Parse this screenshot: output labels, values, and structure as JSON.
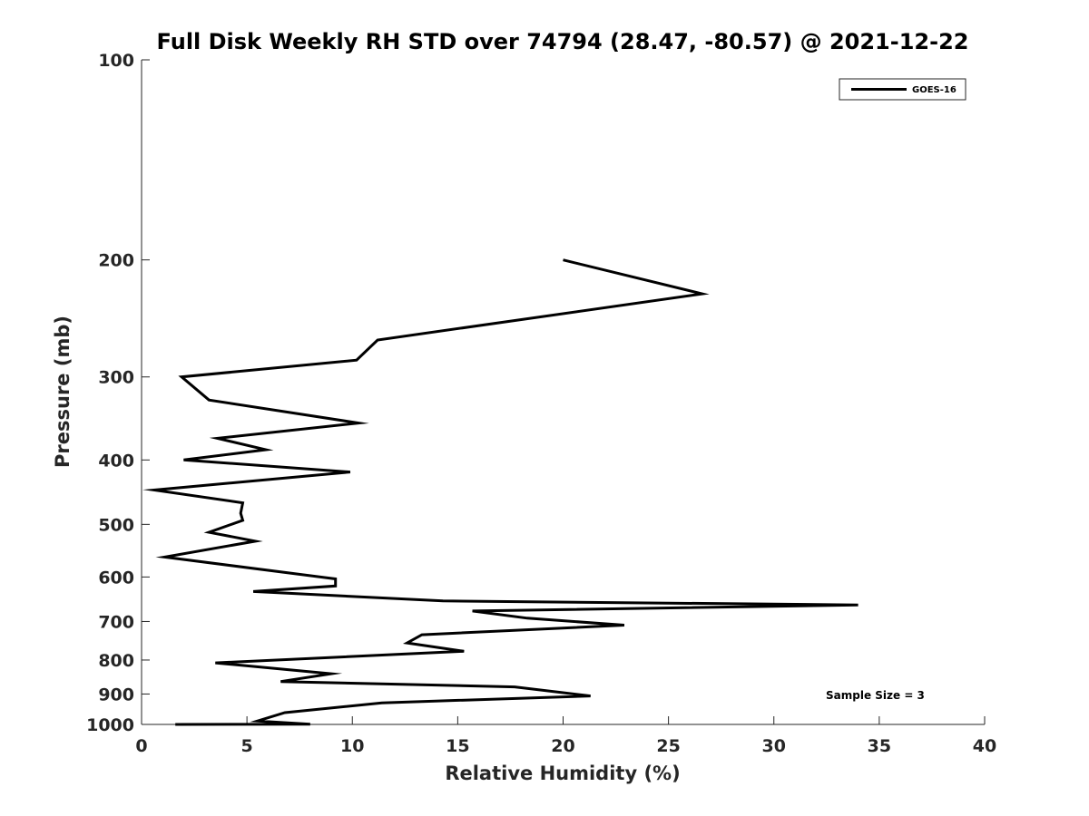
{
  "chart_data": {
    "type": "line",
    "title": "Full Disk Weekly RH STD over 74794 (28.47, -80.57) @ 2021-12-22",
    "xlabel": "Relative Humidity (%)",
    "ylabel": "Pressure (mb)",
    "xlim": [
      0,
      40
    ],
    "ylim": [
      100,
      1000
    ],
    "y_scale": "log",
    "y_reversed": true,
    "x_ticks": [
      0,
      5,
      10,
      15,
      20,
      25,
      30,
      35,
      40
    ],
    "y_ticks": [
      100,
      200,
      300,
      400,
      500,
      600,
      700,
      800,
      900,
      1000
    ],
    "grid": false,
    "legend_position": "top-right",
    "annotation": "Sample Size = 3",
    "series": [
      {
        "name": "GOES-16",
        "color": "#000000",
        "x": [
          20.0,
          26.6,
          11.2,
          10.2,
          1.9,
          3.2,
          10.3,
          3.6,
          5.9,
          2.0,
          9.9,
          0.6,
          4.8,
          4.7,
          4.8,
          3.2,
          5.4,
          1.1,
          9.2,
          9.2,
          5.3,
          14.3,
          34.0,
          15.7,
          18.3,
          22.9,
          13.3,
          12.6,
          15.3,
          3.5,
          9.0,
          6.6,
          17.7,
          21.3,
          11.4,
          6.8,
          5.5,
          8.0,
          1.6
        ],
        "y": [
          200,
          225,
          264,
          283,
          300,
          325,
          352,
          371,
          386,
          400,
          417,
          444,
          464,
          481,
          493,
          514,
          530,
          560,
          604,
          619,
          631,
          652,
          661,
          675,
          692,
          709,
          733,
          754,
          776,
          808,
          839,
          862,
          878,
          906,
          928,
          960,
          988,
          999,
          1000
        ]
      }
    ]
  }
}
